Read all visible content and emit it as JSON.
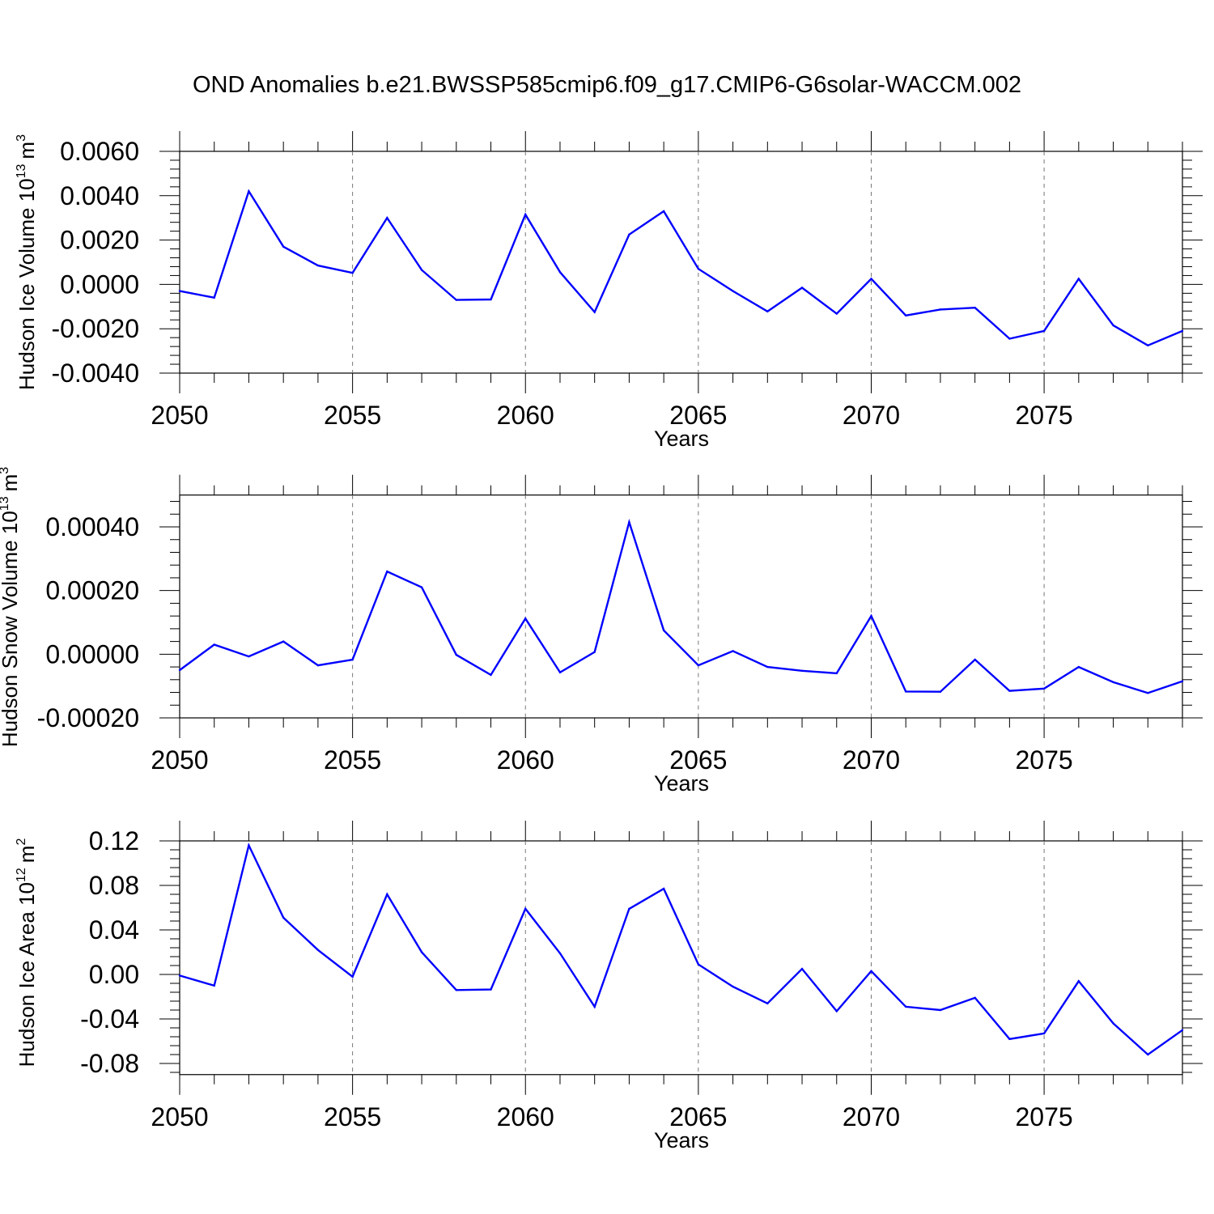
{
  "title": "OND Anomalies b.e21.BWSSP585cmip6.f09_g17.CMIP6-G6solar-WACCM.002",
  "line_color": "#0000ff",
  "chart_data": [
    {
      "type": "line",
      "xlabel": "Years",
      "ylabel": {
        "main": "Hudson Ice Volume 10",
        "exp": "13",
        "unit": "m",
        "unit_exp": "3"
      },
      "xlim": [
        2050,
        2079
      ],
      "ylim": [
        -0.004,
        0.006
      ],
      "xticks": [
        "2050",
        "2055",
        "2060",
        "2065",
        "2070",
        "2075"
      ],
      "yticks": [
        "-0.0040",
        "-0.0020",
        "0.0000",
        "0.0020",
        "0.0040",
        "0.0060"
      ],
      "ytick_values": [
        -0.004,
        -0.002,
        0,
        0.002,
        0.004,
        0.006
      ],
      "x": [
        2050,
        2051,
        2052,
        2053,
        2054,
        2055,
        2056,
        2057,
        2058,
        2059,
        2060,
        2061,
        2062,
        2063,
        2064,
        2065,
        2066,
        2067,
        2068,
        2069,
        2070,
        2071,
        2072,
        2073,
        2074,
        2075,
        2076,
        2077,
        2078,
        2079
      ],
      "y": [
        -0.0003,
        -0.0006,
        0.0042,
        0.0017,
        0.00085,
        0.00052,
        0.003,
        0.00065,
        -0.0007,
        -0.00068,
        0.00315,
        0.00055,
        -0.00125,
        0.00225,
        0.0033,
        0.0007,
        -0.0003,
        -0.00122,
        -0.00015,
        -0.00132,
        0.00025,
        -0.0014,
        -0.00113,
        -0.00105,
        -0.00245,
        -0.0021,
        0.00025,
        -0.00185,
        -0.00275,
        -0.0021
      ]
    },
    {
      "type": "line",
      "xlabel": "Years",
      "ylabel": {
        "main": "Hudson Snow Volume 10",
        "exp": "13",
        "unit": "m",
        "unit_exp": "3"
      },
      "xlim": [
        2050,
        2079
      ],
      "ylim": [
        -0.0002,
        0.0005
      ],
      "xticks": [
        "2050",
        "2055",
        "2060",
        "2065",
        "2070",
        "2075"
      ],
      "yticks": [
        "-0.00020",
        "0.00000",
        "0.00020",
        "0.00040"
      ],
      "ytick_values": [
        -0.0002,
        0,
        0.0002,
        0.0004
      ],
      "x": [
        2050,
        2051,
        2052,
        2053,
        2054,
        2055,
        2056,
        2057,
        2058,
        2059,
        2060,
        2061,
        2062,
        2063,
        2064,
        2065,
        2066,
        2067,
        2068,
        2069,
        2070,
        2071,
        2072,
        2073,
        2074,
        2075,
        2076,
        2077,
        2078,
        2079
      ],
      "y": [
        -5e-05,
        3e-05,
        -7e-06,
        4e-05,
        -3.5e-05,
        -1.7e-05,
        0.00026,
        0.00021,
        -2e-06,
        -6.5e-05,
        0.000112,
        -5.7e-05,
        7e-06,
        0.000415,
        7.5e-05,
        -3.5e-05,
        1e-05,
        -4e-05,
        -5.2e-05,
        -6e-05,
        0.00012,
        -0.000117,
        -0.000118,
        -1.7e-05,
        -0.000115,
        -0.000108,
        -4e-05,
        -8.8e-05,
        -0.000122,
        -8.5e-05
      ]
    },
    {
      "type": "line",
      "xlabel": "Years",
      "ylabel": {
        "main": "Hudson Ice Area 10",
        "exp": "12",
        "unit": "m",
        "unit_exp": "2"
      },
      "xlim": [
        2050,
        2079
      ],
      "ylim": [
        -0.09,
        0.12
      ],
      "xticks": [
        "2050",
        "2055",
        "2060",
        "2065",
        "2070",
        "2075"
      ],
      "yticks": [
        "-0.08",
        "-0.04",
        "0.00",
        "0.04",
        "0.08",
        "0.12"
      ],
      "ytick_values": [
        -0.08,
        -0.04,
        0,
        0.04,
        0.08,
        0.12
      ],
      "x": [
        2050,
        2051,
        2052,
        2053,
        2054,
        2055,
        2056,
        2057,
        2058,
        2059,
        2060,
        2061,
        2062,
        2063,
        2064,
        2065,
        2066,
        2067,
        2068,
        2069,
        2070,
        2071,
        2072,
        2073,
        2074,
        2075,
        2076,
        2077,
        2078,
        2079
      ],
      "y": [
        -0.001,
        -0.01,
        0.116,
        0.051,
        0.022,
        -0.002,
        0.072,
        0.02,
        -0.014,
        -0.0135,
        0.059,
        0.019,
        -0.029,
        0.059,
        0.077,
        0.009,
        -0.011,
        -0.026,
        0.005,
        -0.033,
        0.003,
        -0.029,
        -0.032,
        -0.021,
        -0.058,
        -0.053,
        -0.006,
        -0.044,
        -0.072,
        -0.05
      ]
    }
  ]
}
